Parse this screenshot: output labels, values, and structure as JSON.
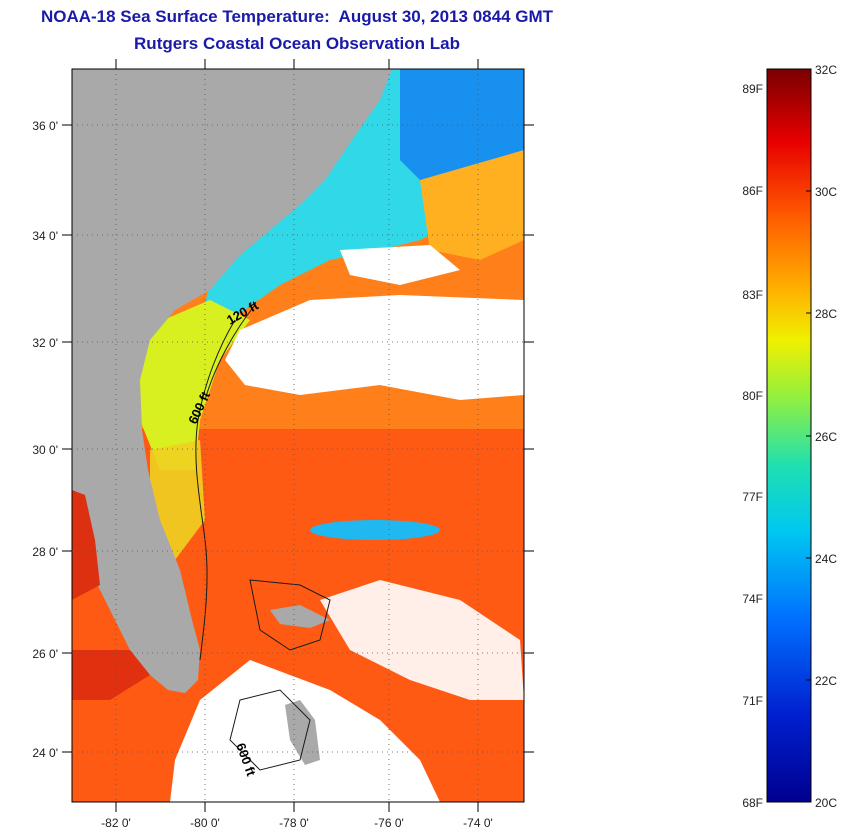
{
  "header": {
    "title_line1": "NOAA-18 Sea Surface Temperature:  August 30, 2013 0844 GMT",
    "title_line2": "Rutgers Coastal Ocean Observation Lab"
  },
  "map": {
    "lat_labels": [
      "36 0'",
      "34 0'",
      "32 0'",
      "30 0'",
      "28 0'",
      "26 0'",
      "24 0'"
    ],
    "lon_labels": [
      "-82 0'",
      "-80 0'",
      "-78 0'",
      "-76 0'",
      "-74 0'"
    ],
    "contour_labels": [
      "120 ft",
      "600 ft",
      "600 ft"
    ]
  },
  "colorbar": {
    "fahrenheit_labels": [
      "89F",
      "86F",
      "83F",
      "80F",
      "77F",
      "74F",
      "71F",
      "68F"
    ],
    "celsius_labels": [
      "32C",
      "30C",
      "28C",
      "26C",
      "24C",
      "22C",
      "20C"
    ]
  },
  "colors": {
    "title": "#1a1aa8",
    "land": "#a9a9a9",
    "warm": "#ff5a14",
    "cold": "#0a1e8c"
  }
}
